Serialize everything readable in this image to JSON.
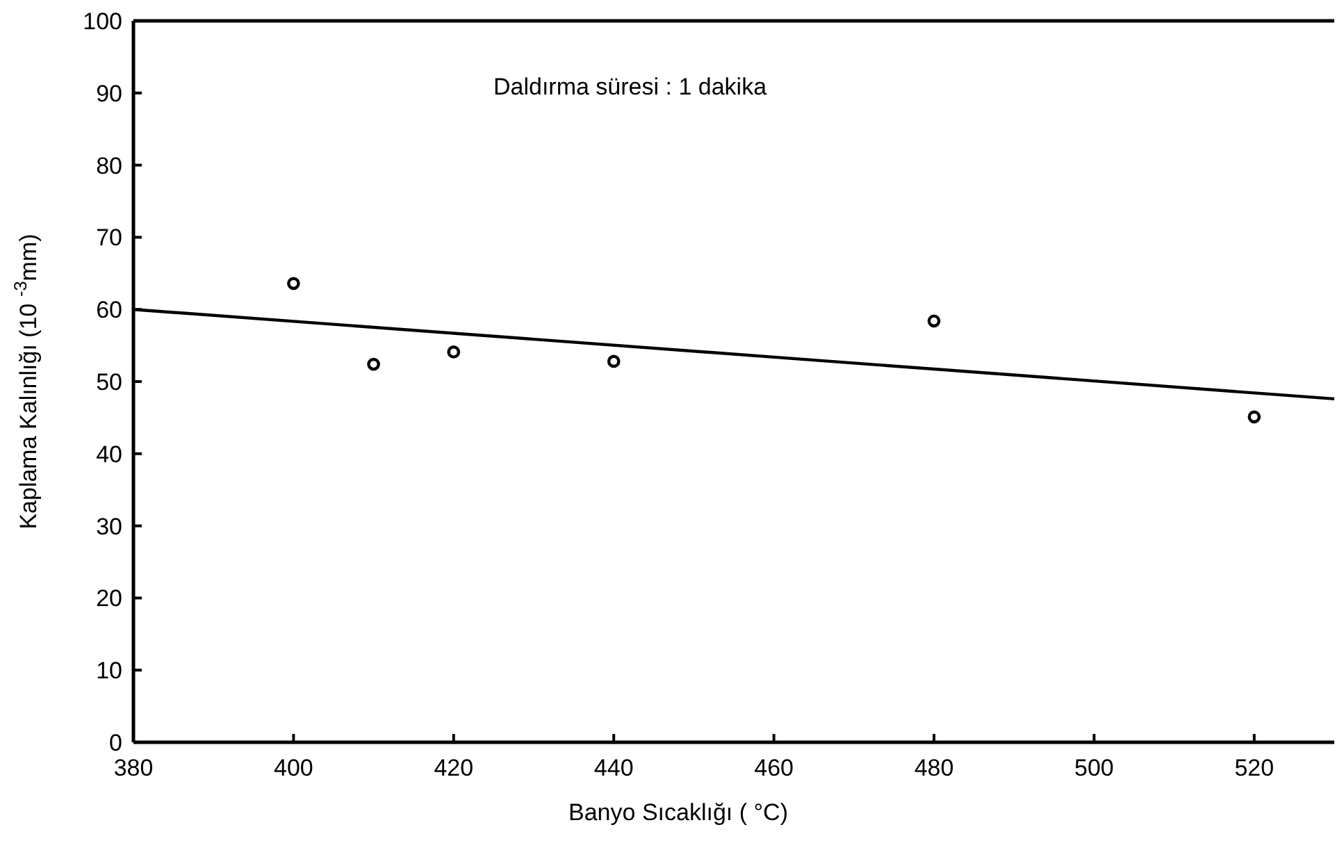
{
  "chart_data": {
    "type": "scatter",
    "xlabel": "Banyo Sıcaklığı ( °C)",
    "ylabel": "Kaplama Kalınlığı (10 $^{-3}$mm)",
    "annotations": [
      "Daldırma süresi : 1 dakika"
    ],
    "xlim": [
      380,
      530
    ],
    "xticks": [
      380,
      400,
      420,
      440,
      460,
      480,
      500,
      520
    ],
    "ylim": [
      0,
      100
    ],
    "yticks": [
      0,
      10,
      20,
      30,
      40,
      50,
      60,
      70,
      80,
      90,
      100
    ],
    "series": [
      {
        "marker": "circle",
        "color": "#000000",
        "x": [
          400,
          410,
          420,
          440,
          480,
          520
        ],
        "values": [
          63.6,
          52.4,
          54.1,
          52.8,
          58.4,
          45.1
        ]
      },
      {
        "type": "line",
        "marker": "none",
        "color": "#000000",
        "x": [
          380,
          530
        ],
        "values": [
          60,
          47.6
        ]
      }
    ]
  }
}
